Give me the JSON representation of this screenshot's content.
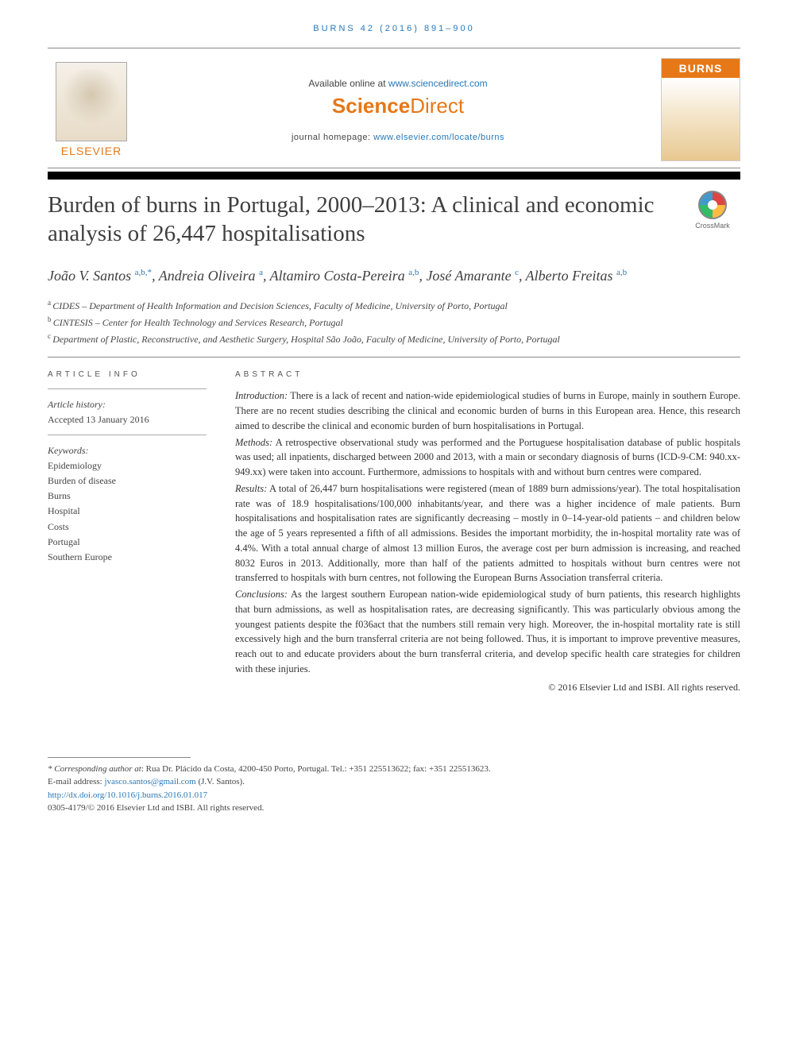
{
  "running_head": "BURNS 42 (2016) 891–900",
  "banner": {
    "available_text": "Available online at ",
    "available_link": "www.sciencedirect.com",
    "sd_logo_bold": "Science",
    "sd_logo_light": "Direct",
    "homepage_label": "journal homepage: ",
    "homepage_link": "www.elsevier.com/locate/burns",
    "elsevier_label": "ELSEVIER",
    "journal_cover_title": "BURNS"
  },
  "title": "Burden of burns in Portugal, 2000–2013: A clinical and economic analysis of 26,447 hospitalisations",
  "crossmark": "CrossMark",
  "authors_html_parts": [
    {
      "name": "João V. Santos",
      "sup": "a,b,*",
      "sep": ", "
    },
    {
      "name": "Andreia Oliveira",
      "sup": "a",
      "sep": ", "
    },
    {
      "name": "Altamiro Costa-Pereira",
      "sup": "a,b",
      "sep": ", "
    },
    {
      "name": "José Amarante",
      "sup": "c",
      "sep": ", "
    },
    {
      "name": "Alberto Freitas",
      "sup": "a,b",
      "sep": ""
    }
  ],
  "affiliations": [
    {
      "sup": "a",
      "text": "CIDES – Department of Health Information and Decision Sciences, Faculty of Medicine, University of Porto, Portugal"
    },
    {
      "sup": "b",
      "text": "CINTESIS – Center for Health Technology and Services Research, Portugal"
    },
    {
      "sup": "c",
      "text": "Department of Plastic, Reconstructive, and Aesthetic Surgery, Hospital São João, Faculty of Medicine, University of Porto, Portugal"
    }
  ],
  "article_info": {
    "heading": "ARTICLE INFO",
    "history_label": "Article history:",
    "history_value": "Accepted 13 January 2016",
    "keywords_label": "Keywords:",
    "keywords": [
      "Epidemiology",
      "Burden of disease",
      "Burns",
      "Hospital",
      "Costs",
      "Portugal",
      "Southern Europe"
    ]
  },
  "abstract": {
    "heading": "ABSTRACT",
    "sections": {
      "introduction_label": "Introduction:",
      "introduction": " There is a lack of recent and nation-wide epidemiological studies of burns in Europe, mainly in southern Europe. There are no recent studies describing the clinical and economic burden of burns in this European area. Hence, this research aimed to describe the clinical and economic burden of burn hospitalisations in Portugal.",
      "methods_label": "Methods:",
      "methods": " A retrospective observational study was performed and the Portuguese hospitalisation database of public hospitals was used; all inpatients, discharged between 2000 and 2013, with a main or secondary diagnosis of burns (ICD-9-CM: 940.xx-949.xx) were taken into account. Furthermore, admissions to hospitals with and without burn centres were compared.",
      "results_label": "Results:",
      "results": " A total of 26,447 burn hospitalisations were registered (mean of 1889 burn admissions/year). The total hospitalisation rate was of 18.9 hospitalisations/100,000 inhabitants/year, and there was a higher incidence of male patients. Burn hospitalisations and hospitalisation rates are significantly decreasing – mostly in 0–14-year-old patients – and children below the age of 5 years represented a fifth of all admissions. Besides the important morbidity, the in-hospital mortality rate was of 4.4%. With a total annual charge of almost 13 million Euros, the average cost per burn admission is increasing, and reached 8032 Euros in 2013. Additionally, more than half of the patients admitted to hospitals without burn centres were not transferred to hospitals with burn centres, not following the European Burns Association transferral criteria.",
      "conclusions_label": "Conclusions:",
      "conclusions": " As the largest southern European nation-wide epidemiological study of burn patients, this research highlights that burn admissions, as well as hospitalisation rates, are decreasing significantly. This was particularly obvious among the youngest patients despite the f036act that the numbers still remain very high. Moreover, the in-hospital mortality rate is still excessively high and the burn transferral criteria are not being followed. Thus, it is important to improve preventive measures, reach out to and educate providers about the burn transferral criteria, and develop specific health care strategies for children with these injuries."
    },
    "copyright": "© 2016 Elsevier Ltd and ISBI. All rights reserved."
  },
  "footer": {
    "corresponding_label": "* Corresponding author at",
    "corresponding": ": Rua Dr. Plácido da Costa, 4200-450 Porto, Portugal. Tel.: +351 225513622; fax: +351 225513623.",
    "email_label": "E-mail address: ",
    "email": "jvasco.santos@gmail.com",
    "email_person": " (J.V. Santos).",
    "doi": "http://dx.doi.org/10.1016/j.burns.2016.01.017",
    "issn_line": "0305-4179/© 2016 Elsevier Ltd and ISBI. All rights reserved."
  },
  "colors": {
    "accent_orange": "#e67817",
    "link_blue": "#2878b8",
    "text": "#333333"
  }
}
